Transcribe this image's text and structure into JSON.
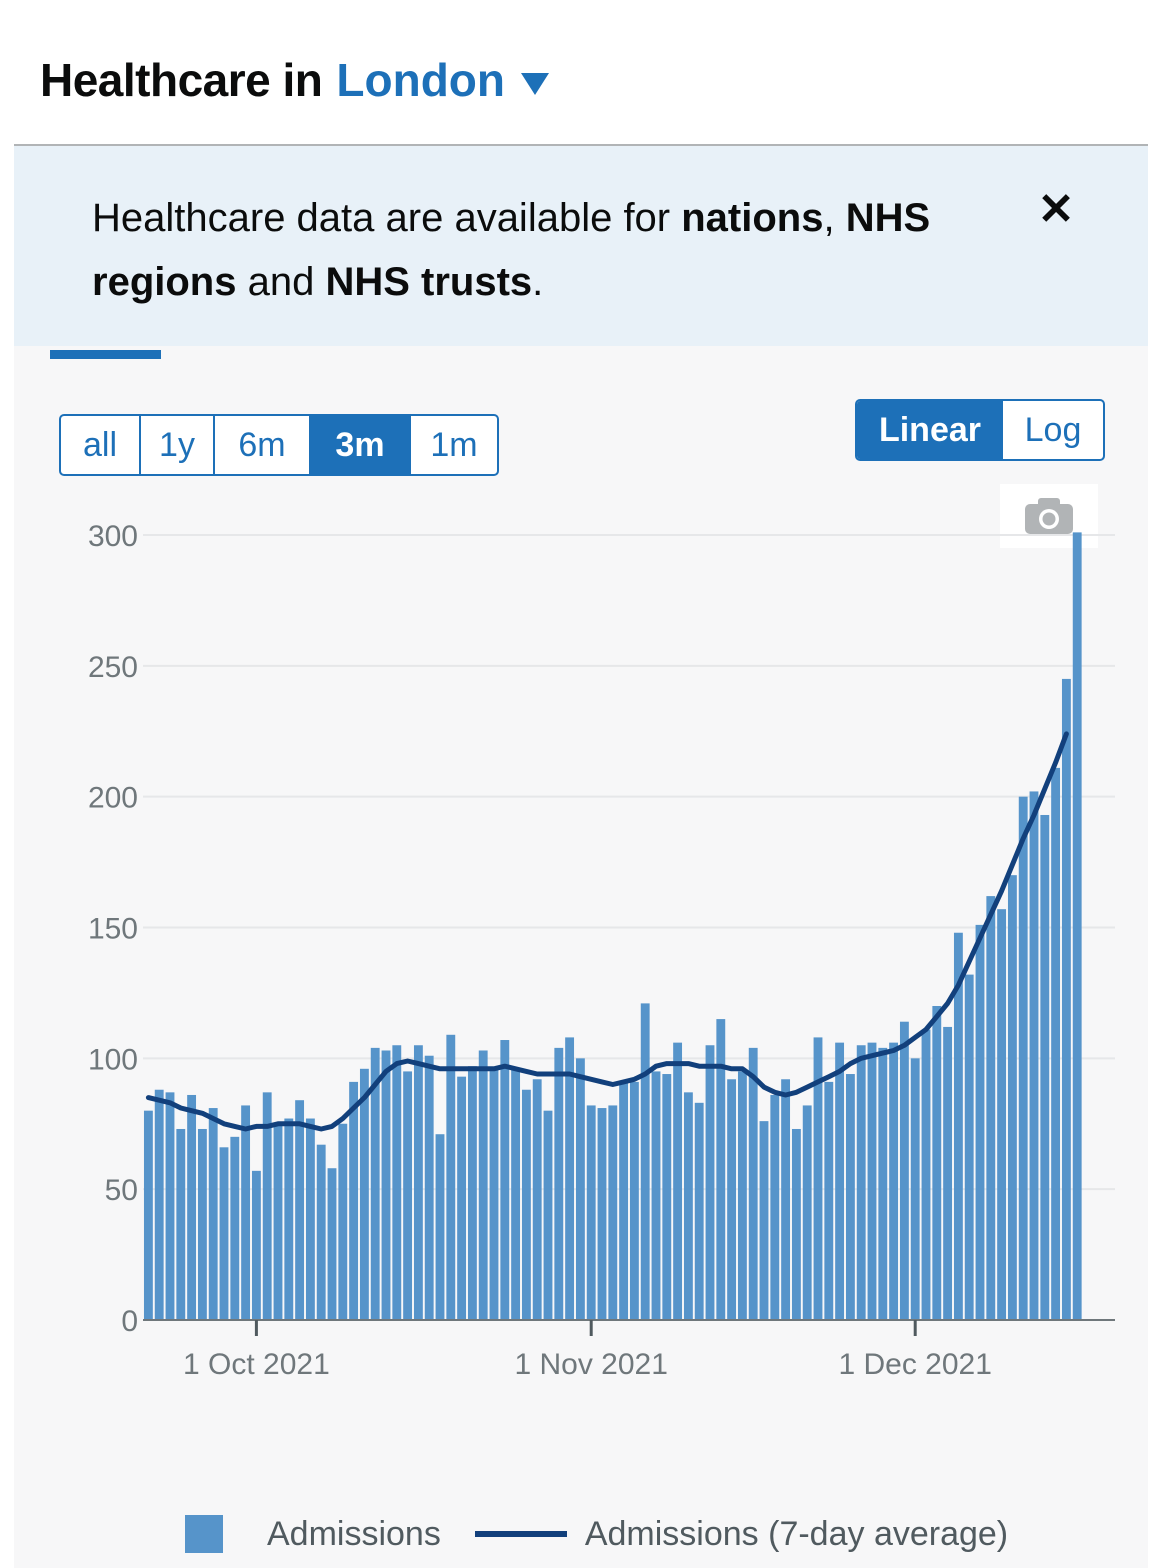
{
  "header": {
    "title": "Healthcare in",
    "area": "London"
  },
  "banner": {
    "parts": [
      {
        "text": "Healthcare data are available for ",
        "bold": false
      },
      {
        "text": "nations",
        "bold": true
      },
      {
        "text": ", ",
        "bold": false
      },
      {
        "text": "NHS regions",
        "bold": true
      },
      {
        "text": " and ",
        "bold": false
      },
      {
        "text": "NHS trusts",
        "bold": true
      },
      {
        "text": ".",
        "bold": false
      }
    ],
    "close_label": "✕"
  },
  "controls": {
    "periods": [
      "all",
      "1y",
      "6m",
      "3m",
      "1m"
    ],
    "active_period": "3m",
    "scales": [
      "Linear",
      "Log"
    ],
    "active_scale": "Linear"
  },
  "colors": {
    "bars": "#5694ca",
    "average_line": "#12407c",
    "accent": "#1d70b8"
  },
  "chart_data": {
    "type": "bar",
    "title": "",
    "xlabel": "",
    "ylabel": "",
    "ylim": [
      0,
      300
    ],
    "yticks": [
      0,
      50,
      100,
      150,
      200,
      250,
      300
    ],
    "xticks": [
      {
        "date": "2021-10-01",
        "label": "1 Oct 2021"
      },
      {
        "date": "2021-11-01",
        "label": "1 Nov 2021"
      },
      {
        "date": "2021-12-01",
        "label": "1 Dec 2021"
      }
    ],
    "x_start": "2021-09-21",
    "x_end": "2021-12-19",
    "grid": true,
    "legend_position": "bottom",
    "series": [
      {
        "name": "Admissions",
        "type": "bar",
        "values": [
          80,
          88,
          87,
          73,
          86,
          73,
          81,
          66,
          70,
          82,
          57,
          87,
          75,
          77,
          84,
          77,
          67,
          58,
          75,
          91,
          96,
          104,
          103,
          105,
          95,
          105,
          101,
          71,
          109,
          93,
          97,
          103,
          96,
          107,
          96,
          88,
          92,
          80,
          104,
          108,
          100,
          82,
          81,
          82,
          91,
          91,
          121,
          95,
          94,
          106,
          87,
          83,
          105,
          115,
          92,
          95,
          104,
          76,
          86,
          92,
          73,
          82,
          108,
          91,
          106,
          94,
          105,
          106,
          104,
          106,
          114,
          100,
          111,
          120,
          112,
          148,
          132,
          151,
          162,
          157,
          170,
          200,
          202,
          193,
          211,
          245,
          301
        ]
      },
      {
        "name": "Admissions (7-day average)",
        "type": "line",
        "values": [
          85,
          84,
          83,
          81,
          80,
          79,
          77,
          75,
          74,
          73,
          74,
          74,
          75,
          75,
          75,
          74,
          73,
          74,
          77,
          81,
          85,
          90,
          95,
          98,
          99,
          98,
          97,
          96,
          96,
          96,
          96,
          96,
          96,
          97,
          96,
          95,
          94,
          94,
          94,
          94,
          93,
          92,
          91,
          90,
          91,
          92,
          94,
          97,
          98,
          98,
          98,
          97,
          97,
          97,
          96,
          96,
          93,
          89,
          87,
          86,
          87,
          89,
          91,
          93,
          95,
          98,
          100,
          101,
          102,
          103,
          105,
          108,
          111,
          116,
          121,
          128,
          137,
          146,
          155,
          164,
          174,
          184,
          193,
          203,
          213,
          224,
          null
        ]
      }
    ]
  }
}
